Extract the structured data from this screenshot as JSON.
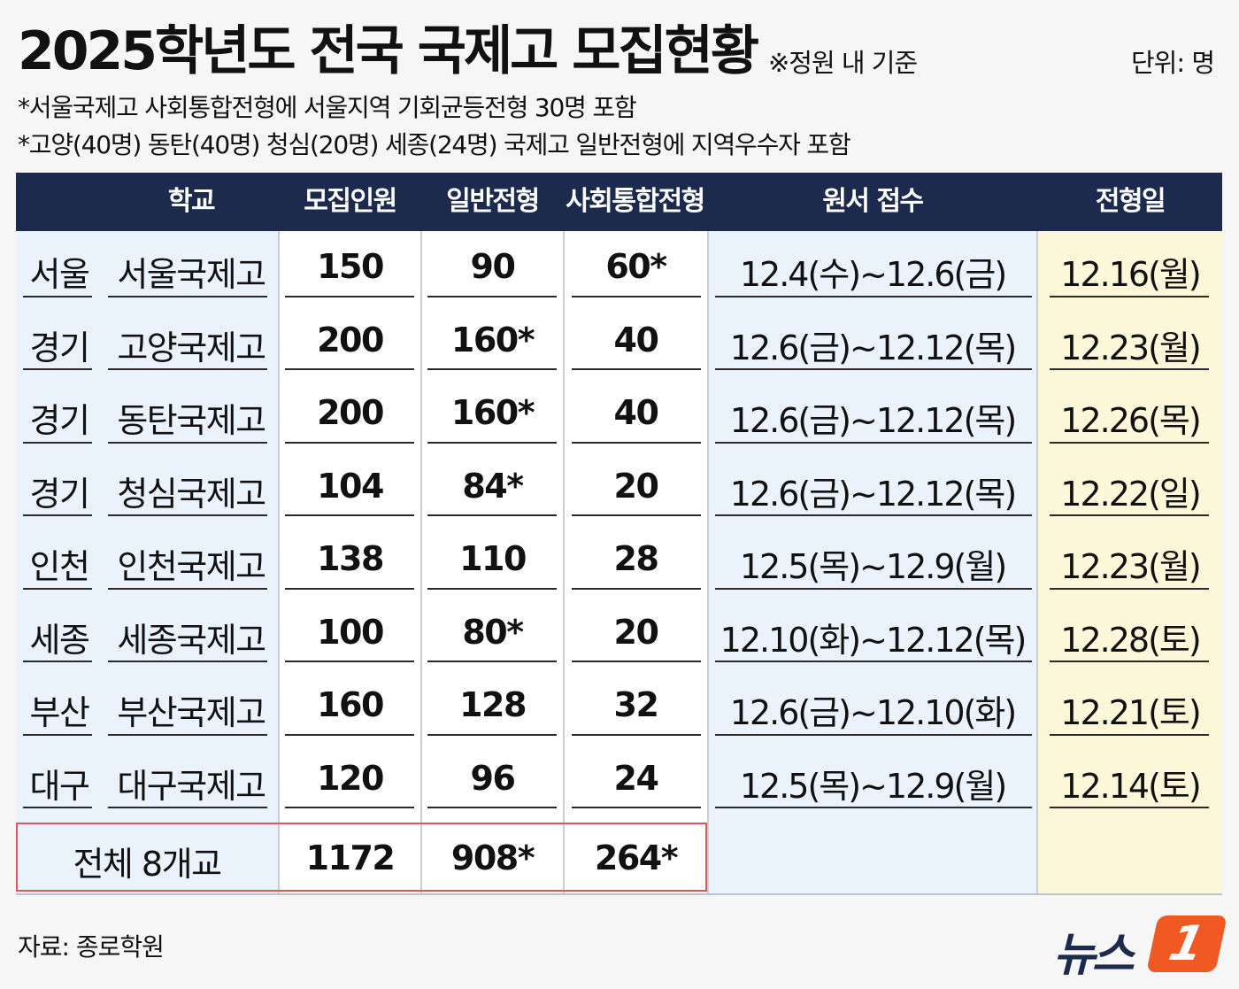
{
  "title": "2025학년도 전국 국제고 모집현황",
  "standard_note": "※정원 내 기준",
  "unit": "단위: 명",
  "notes": [
    "*서울국제고 사회통합전형에 서울지역 기회균등전형 30명 포함",
    "*고양(40명) 동탄(40명) 청심(20명) 세종(24명) 국제고 일반전형에 지역우수자 포함"
  ],
  "headers": {
    "school": "학교",
    "recruit": "모집인원",
    "general": "일반전형",
    "social": "사회통합전형",
    "apply": "원서 접수",
    "exam": "전형일"
  },
  "rows": [
    {
      "region": "서울",
      "school": "서울국제고",
      "recruit": "150",
      "general": "90",
      "social": "60*",
      "apply": "12.4(수)~12.6(금)",
      "exam": "12.16(월)"
    },
    {
      "region": "경기",
      "school": "고양국제고",
      "recruit": "200",
      "general": "160*",
      "social": "40",
      "apply": "12.6(금)~12.12(목)",
      "exam": "12.23(월)"
    },
    {
      "region": "경기",
      "school": "동탄국제고",
      "recruit": "200",
      "general": "160*",
      "social": "40",
      "apply": "12.6(금)~12.12(목)",
      "exam": "12.26(목)"
    },
    {
      "region": "경기",
      "school": "청심국제고",
      "recruit": "104",
      "general": "84*",
      "social": "20",
      "apply": "12.6(금)~12.12(목)",
      "exam": "12.22(일)"
    },
    {
      "region": "인천",
      "school": "인천국제고",
      "recruit": "138",
      "general": "110",
      "social": "28",
      "apply": "12.5(목)~12.9(월)",
      "exam": "12.23(월)"
    },
    {
      "region": "세종",
      "school": "세종국제고",
      "recruit": "100",
      "general": "80*",
      "social": "20",
      "apply": "12.10(화)~12.12(목)",
      "exam": "12.28(토)"
    },
    {
      "region": "부산",
      "school": "부산국제고",
      "recruit": "160",
      "general": "128",
      "social": "32",
      "apply": "12.6(금)~12.10(화)",
      "exam": "12.21(토)"
    },
    {
      "region": "대구",
      "school": "대구국제고",
      "recruit": "120",
      "general": "96",
      "social": "24",
      "apply": "12.5(목)~12.9(월)",
      "exam": "12.14(토)"
    }
  ],
  "total": {
    "label": "전체 8개교",
    "recruit": "1172",
    "general": "908*",
    "social": "264*"
  },
  "source": "자료: 종로학원",
  "logo": {
    "text": "뉴스",
    "badge": "1"
  },
  "colors": {
    "header_bg": "#1c2b4d",
    "light_blue": "#eaf2fb",
    "light_yellow": "#fdf7da",
    "total_border": "#d95c5c",
    "logo_orange": "#f05a22"
  }
}
